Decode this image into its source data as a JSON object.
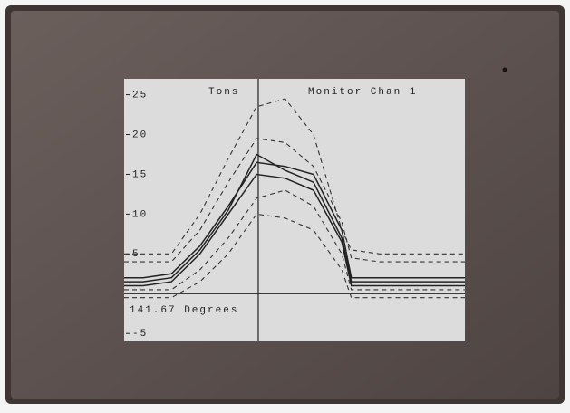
{
  "chart_data": {
    "type": "line",
    "title": "Tons",
    "subtitle": "Monitor Chan 1",
    "cursor": 141.67,
    "cursor_label": "141.67 Degrees",
    "x": [
      0,
      20,
      50,
      80,
      110,
      140,
      170,
      200,
      230,
      240,
      270,
      300,
      330,
      360
    ],
    "xlim": [
      0,
      360
    ],
    "ylim": [
      -6,
      27
    ],
    "yticks": [
      -5,
      5,
      10,
      15,
      20,
      25
    ],
    "series": [
      {
        "color": "#333333",
        "dashed": true,
        "values": [
          5,
          5,
          5,
          10,
          17,
          23.5,
          24.5,
          20,
          8,
          5.5,
          5,
          5,
          5,
          5
        ]
      },
      {
        "color": "#333333",
        "dashed": true,
        "values": [
          4,
          4,
          4,
          8,
          14,
          19.5,
          19,
          16,
          9,
          4.5,
          4,
          4,
          4,
          4
        ]
      },
      {
        "color": "#222222",
        "dashed": false,
        "values": [
          2,
          2,
          2.5,
          6,
          11,
          16.5,
          16,
          15,
          8,
          2,
          2,
          2,
          2,
          2
        ]
      },
      {
        "color": "#222222",
        "dashed": false,
        "values": [
          1.5,
          1.5,
          2,
          5.5,
          10.5,
          17.5,
          15.5,
          14,
          7,
          1.5,
          1.5,
          1.5,
          1.5,
          1.5
        ]
      },
      {
        "color": "#222222",
        "dashed": false,
        "values": [
          1,
          1,
          1.5,
          5,
          10,
          15,
          14.5,
          13,
          6.5,
          1,
          1,
          1,
          1,
          1
        ]
      },
      {
        "color": "#333333",
        "dashed": true,
        "values": [
          0.5,
          0.5,
          0.5,
          3,
          7,
          12,
          13,
          11,
          5,
          0.5,
          0.5,
          0.5,
          0.5,
          0.5
        ]
      },
      {
        "color": "#333333",
        "dashed": true,
        "values": [
          -0.5,
          -0.5,
          -0.5,
          1.5,
          5,
          10,
          9.5,
          8,
          3,
          -0.5,
          -0.5,
          -0.5,
          -0.5,
          -0.5
        ]
      }
    ]
  }
}
